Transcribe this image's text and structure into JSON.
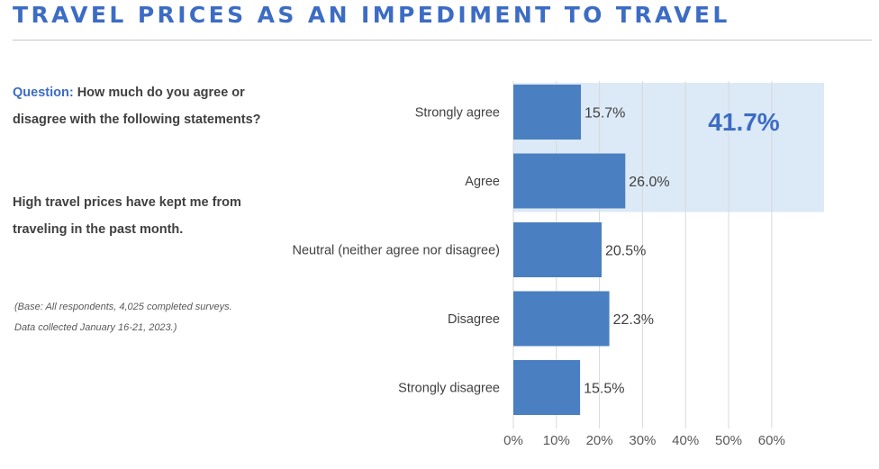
{
  "page": {
    "title": "TRAVEL PRICES AS AN IMPEDIMENT TO TRAVEL",
    "question_label": "Question:",
    "question_text": " How much do you agree or disagree with the following statements?",
    "statement": "High travel prices have kept me from traveling in the past month.",
    "base_line1": "(Base: All respondents, 4,025 completed surveys.",
    "base_line2": "Data collected January 16-21, 2023.)"
  },
  "colors": {
    "title": "#3c6cc4",
    "bar": "#4a7fc1",
    "highlight": "#dce9f6",
    "highlight_text": "#3c6cc4",
    "grid": "#d9d9d9",
    "text": "#404040"
  },
  "chart_data": {
    "type": "bar",
    "orientation": "horizontal",
    "categories": [
      "Strongly agree",
      "Agree",
      "Neutral (neither agree nor disagree)",
      "Disagree",
      "Strongly disagree"
    ],
    "values": [
      15.7,
      26.0,
      20.5,
      22.3,
      15.5
    ],
    "value_labels": [
      "15.7%",
      "26.0%",
      "20.5%",
      "22.3%",
      "15.5%"
    ],
    "x_ticks": [
      0,
      10,
      20,
      30,
      40,
      50,
      60
    ],
    "x_tick_labels": [
      "0%",
      "10%",
      "20%",
      "30%",
      "40%",
      "50%",
      "60%"
    ],
    "xlim": [
      0,
      60
    ],
    "grid": true,
    "highlight": {
      "categories": [
        "Strongly agree",
        "Agree"
      ],
      "label": "41.7%"
    }
  }
}
